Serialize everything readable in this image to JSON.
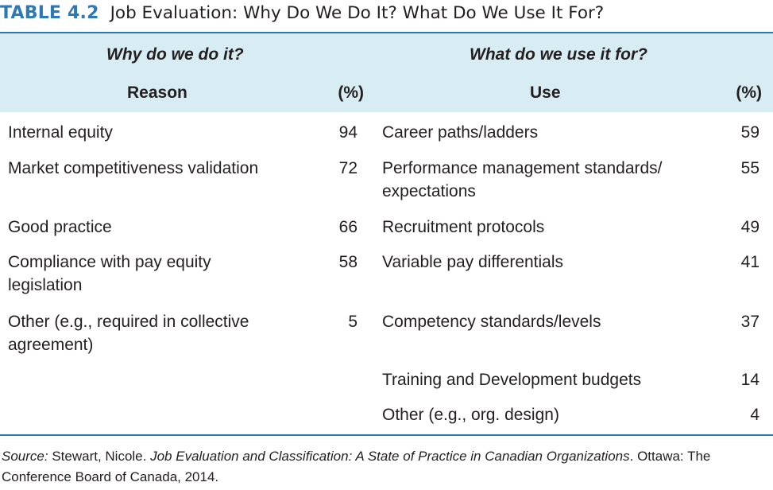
{
  "caption": {
    "label": "TABLE 4.2",
    "title": "Job Evaluation: Why Do We Do It? What Do We Use It For?"
  },
  "header": {
    "left_group": "Why do we do it?",
    "right_group": "What do we use it for?",
    "left_col_label": "Reason",
    "left_col_pct": "(%)",
    "right_col_label": "Use",
    "right_col_pct": "(%)"
  },
  "reasons": [
    {
      "lines": [
        "Internal equity"
      ],
      "pct": "94"
    },
    {
      "lines": [
        "Market competitiveness validation"
      ],
      "pct": "72"
    },
    {
      "lines": [
        "Good practice"
      ],
      "pct": "66"
    },
    {
      "lines": [
        "Compliance with pay equity",
        "legislation"
      ],
      "pct": "58"
    },
    {
      "lines": [
        "Other (e.g., required in collective",
        "agreement)"
      ],
      "pct": "5"
    }
  ],
  "uses": [
    {
      "lines": [
        "Career paths/ladders"
      ],
      "pct": "59"
    },
    {
      "lines": [
        "Performance management standards/",
        "expectations"
      ],
      "pct": "55"
    },
    {
      "lines": [
        "Recruitment protocols"
      ],
      "pct": "49"
    },
    {
      "lines": [
        "Variable pay differentials"
      ],
      "pct": "41"
    },
    {
      "lines": [
        "Competency standards/levels"
      ],
      "pct": "37"
    },
    {
      "lines": [
        "Training and Development budgets"
      ],
      "pct": "14"
    },
    {
      "lines": [
        "Other (e.g., org. design)"
      ],
      "pct": "4"
    }
  ],
  "source": {
    "label": "Source:",
    "author": " Stewart, Nicole. ",
    "title": "Job Evaluation and Classification: A State of Practice in Canadian Organizations",
    "rest": ". Ottawa: The Conference Board of Canada, 2014."
  },
  "colors": {
    "accent": "#2b79b9",
    "header_bg": "#d8ecf3",
    "text": "#231f20"
  }
}
